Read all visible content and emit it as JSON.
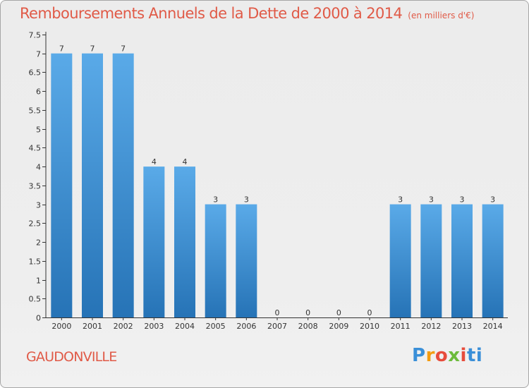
{
  "header": {
    "title": "Remboursements Annuels de la Dette de 2000 à 2014",
    "subtitle": "(en milliers d'€)"
  },
  "footer": {
    "commune": "GAUDONVILLE"
  },
  "logo": {
    "letters": [
      "P",
      "r",
      "o",
      "x",
      "i",
      "ti"
    ],
    "colors": [
      "#3a8fd8",
      "#f39c12",
      "#e74c3c",
      "#6dbb3c",
      "#e74c3c",
      "#3a8fd8"
    ]
  },
  "chart_data": {
    "type": "bar",
    "title": "Remboursements Annuels de la Dette de 2000 à 2014",
    "xlabel": "",
    "ylabel": "",
    "categories": [
      "2000",
      "2001",
      "2002",
      "2003",
      "2004",
      "2005",
      "2006",
      "2007",
      "2008",
      "2009",
      "2010",
      "2011",
      "2012",
      "2013",
      "2014"
    ],
    "values": [
      7,
      7,
      7,
      4,
      4,
      3,
      3,
      0,
      0,
      0,
      0,
      3,
      3,
      3,
      3
    ],
    "data_labels": [
      "7",
      "7",
      "7",
      "4",
      "4",
      "3",
      "3",
      "0",
      "0",
      "0",
      "0",
      "3",
      "3",
      "3",
      "3"
    ],
    "ylim": [
      0,
      7.5
    ],
    "yticks": [
      0,
      0.5,
      1,
      1.5,
      2,
      2.5,
      3,
      3.5,
      4,
      4.5,
      5,
      5.5,
      6,
      6.5,
      7,
      7.5
    ],
    "ytick_labels": [
      "0",
      "0.5",
      "1",
      "1.5",
      "2",
      "2.5",
      "3",
      "3.5",
      "4",
      "4.5",
      "5",
      "5.5",
      "6",
      "6.5",
      "7",
      "7.5"
    ],
    "grid": false,
    "bar_color_top": "#5aaae8",
    "bar_color_bottom": "#2673b6",
    "axis_color": "#333333",
    "label_color": "#333333"
  }
}
